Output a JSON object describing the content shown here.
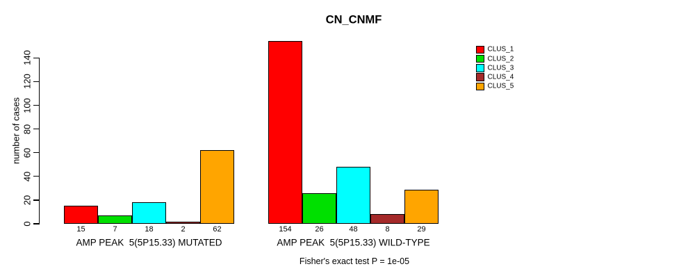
{
  "chart_data": {
    "type": "bar",
    "title": "CN_CNMF",
    "ylabel": "number of cases",
    "annotation": "Fisher's exact test P = 1e-05",
    "series_names": [
      "CLUS_1",
      "CLUS_2",
      "CLUS_3",
      "CLUS_4",
      "CLUS_5"
    ],
    "series_colors": [
      "#ff0000",
      "#00e000",
      "#00ffff",
      "#a52a2a",
      "#ffa500"
    ],
    "groups": [
      {
        "label": "AMP PEAK  5(5P15.33) MUTATED",
        "values": [
          15,
          7,
          18,
          2,
          62
        ]
      },
      {
        "label": "AMP PEAK  5(5P15.33) WILD-TYPE",
        "values": [
          154,
          26,
          48,
          8,
          29
        ]
      }
    ],
    "yticks": [
      0,
      20,
      40,
      60,
      80,
      100,
      120,
      140
    ],
    "ylim": [
      0,
      155
    ],
    "grid": false,
    "legend_position": "right"
  }
}
